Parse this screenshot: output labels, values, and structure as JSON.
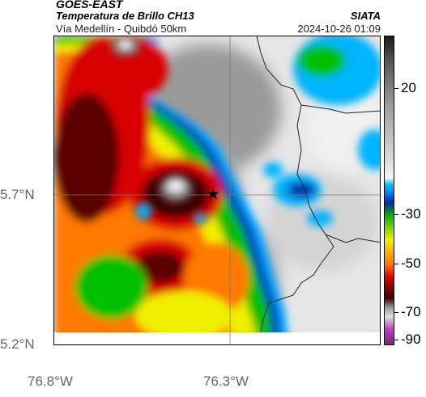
{
  "header": {
    "title_line1": "GOES-EAST",
    "title_line2": "Temperatura de Brillo CH13",
    "subtitle": "Vía Medellín - Quibdó 50km",
    "organization": "SIATA",
    "datetime": "2024-10-26 01:09"
  },
  "map": {
    "lat_labels": [
      "5.7°N",
      "5.2°N"
    ],
    "lon_labels": [
      "76.8°W",
      "76.3°W"
    ],
    "marker_icon": "star-icon"
  },
  "colorbar": {
    "ticks": [
      "20",
      "-30",
      "-50",
      "-70",
      "-90"
    ],
    "colors": {
      "warm_top": "#1a1a1a",
      "gray": "#9a9a9a",
      "cyan": "#00b4ff",
      "blue": "#0028a0",
      "green": "#00c000",
      "yellow": "#f0f000",
      "orange": "#ff7800",
      "red": "#d80000",
      "dark_red": "#3c0000",
      "magenta": "#c040c0"
    }
  }
}
